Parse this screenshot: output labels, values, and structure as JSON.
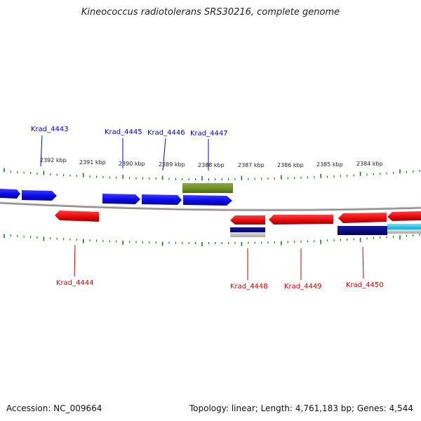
{
  "title": "Kineococcus radiotolerans SRS30216, complete genome",
  "footer": {
    "accession": "Accession: NC_009664",
    "summary": "Topology: linear; Length: 4,761,183 bp; Genes: 4,544"
  },
  "colors": {
    "forward_gene": "#0a0ae6",
    "reverse_gene": "#e60a0a",
    "highlight_gene": "#6b8e23",
    "dark_gene": "#000080",
    "cyan_gene": "#1ec8f0",
    "ruler": "#1f7a1f",
    "backbone": "#8c8c8c",
    "forward_label": "#0000cc",
    "reverse_label": "#cc0000"
  },
  "scale_labels": [
    "2392 kbp",
    "2391 kbp",
    "2390 kbp",
    "2389 kbp",
    "2388 kbp",
    "2387 kbp",
    "2386 kbp",
    "2385 kbp",
    "2384 kbp"
  ],
  "forward_genes": [
    {
      "label": "",
      "strand": "forward",
      "color": "blue"
    },
    {
      "label": "",
      "strand": "forward",
      "color": "blue"
    },
    {
      "label": "Krad_4445",
      "strand": "forward",
      "color": "blue"
    },
    {
      "label": "Krad_4446",
      "strand": "forward",
      "color": "blue"
    },
    {
      "label": "Krad_4447",
      "strand": "forward",
      "color": "blue"
    },
    {
      "label": "",
      "strand": "forward",
      "color": "olive"
    }
  ],
  "reverse_genes": [
    {
      "label": "Krad_4444",
      "strand": "reverse",
      "color": "red"
    },
    {
      "label": "Krad_4448",
      "strand": "reverse",
      "color": "red"
    },
    {
      "label": "",
      "strand": "reverse",
      "color": "navy"
    },
    {
      "label": "Krad_4449",
      "strand": "reverse",
      "color": "red"
    },
    {
      "label": "Krad_4450",
      "strand": "reverse",
      "color": "red"
    },
    {
      "label": "",
      "strand": "reverse",
      "color": "navy"
    },
    {
      "label": "",
      "strand": "reverse",
      "color": "red"
    },
    {
      "label": "",
      "strand": "reverse",
      "color": "cyan"
    }
  ],
  "callouts": [
    "Krad_4443",
    "Krad_4445",
    "Krad_4446",
    "Krad_4447",
    "Krad_4444",
    "Krad_4448",
    "Krad_4449",
    "Krad_4450"
  ]
}
